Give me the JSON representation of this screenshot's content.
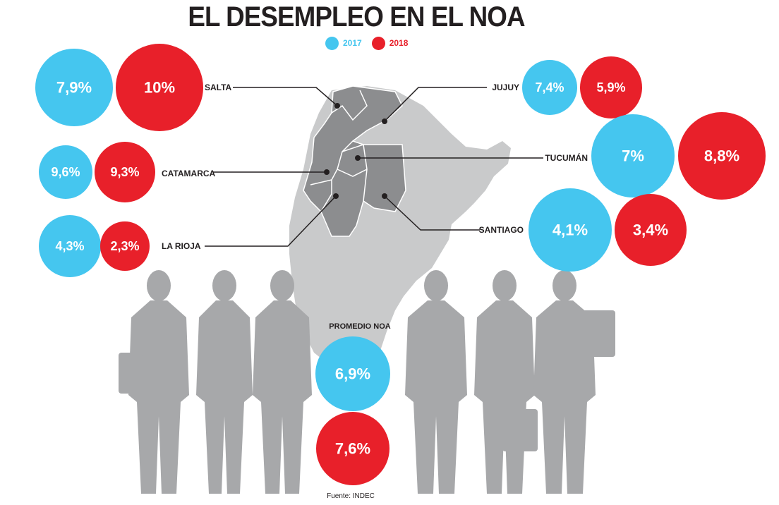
{
  "title": "EL DESEMPLEO EN EL NOA",
  "legend": {
    "items": [
      {
        "label": "2017",
        "color": "#45c6ef"
      },
      {
        "label": "2018",
        "color": "#e8202a"
      }
    ]
  },
  "colors": {
    "y2017": "#45c6ef",
    "y2018": "#e8202a",
    "map_region": "#8c8d8f",
    "map_country": "#c9cacb",
    "silhouettes": "#a7a8aa"
  },
  "chart_data": {
    "type": "bubble",
    "title": "EL DESEMPLEO EN EL NOA",
    "series": [
      {
        "name": "2017"
      },
      {
        "name": "2018"
      }
    ],
    "categories": [
      "SALTA",
      "JUJUY",
      "CATAMARCA",
      "TUCUMÁN",
      "LA RIOJA",
      "SANTIAGO",
      "PROMEDIO NOA"
    ],
    "rows": [
      {
        "region": "SALTA",
        "v2017": 7.9,
        "v2018": 10,
        "label2017": "7,9%",
        "label2018": "10%"
      },
      {
        "region": "JUJUY",
        "v2017": 7.4,
        "v2018": 5.9,
        "label2017": "7,4%",
        "label2018": "5,9%"
      },
      {
        "region": "CATAMARCA",
        "v2017": 9.6,
        "v2018": 9.3,
        "label2017": "9,6%",
        "label2018": "9,3%"
      },
      {
        "region": "TUCUMÁN",
        "v2017": 7,
        "v2018": 8.8,
        "label2017": "7%",
        "label2018": "8,8%"
      },
      {
        "region": "LA RIOJA",
        "v2017": 4.3,
        "v2018": 2.3,
        "label2017": "4,3%",
        "label2018": "2,3%"
      },
      {
        "region": "SANTIAGO",
        "v2017": 4.1,
        "v2018": 3.4,
        "label2017": "4,1%",
        "label2018": "3,4%"
      },
      {
        "region": "PROMEDIO NOA",
        "v2017": 6.9,
        "v2018": 7.6,
        "label2017": "6,9%",
        "label2018": "7,6%"
      }
    ]
  },
  "source": "Fuente: INDEC"
}
